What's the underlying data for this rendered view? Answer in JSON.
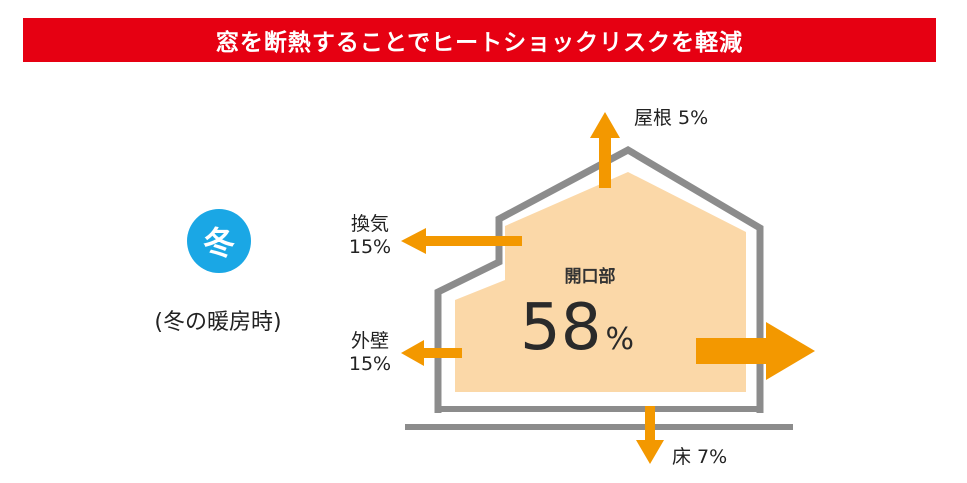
{
  "header": {
    "title": "窓を断熱することでヒートショックリスクを軽減"
  },
  "season": {
    "badge": "冬",
    "caption": "(冬の暖房時)"
  },
  "heat_loss": {
    "opening": {
      "label": "開口部",
      "value": "58",
      "unit": "%"
    },
    "roof": {
      "label": "屋根 5%"
    },
    "ventilation": {
      "label": "換気",
      "value": "15%"
    },
    "outer_wall": {
      "label": "外壁",
      "value": "15%"
    },
    "floor": {
      "label": "床 7%"
    }
  },
  "colors": {
    "banner": "#e60012",
    "badge": "#1aa7e5",
    "arrow": "#f39800",
    "house_fill": "#fbd8a8",
    "house_outline": "#8c8c8c"
  }
}
